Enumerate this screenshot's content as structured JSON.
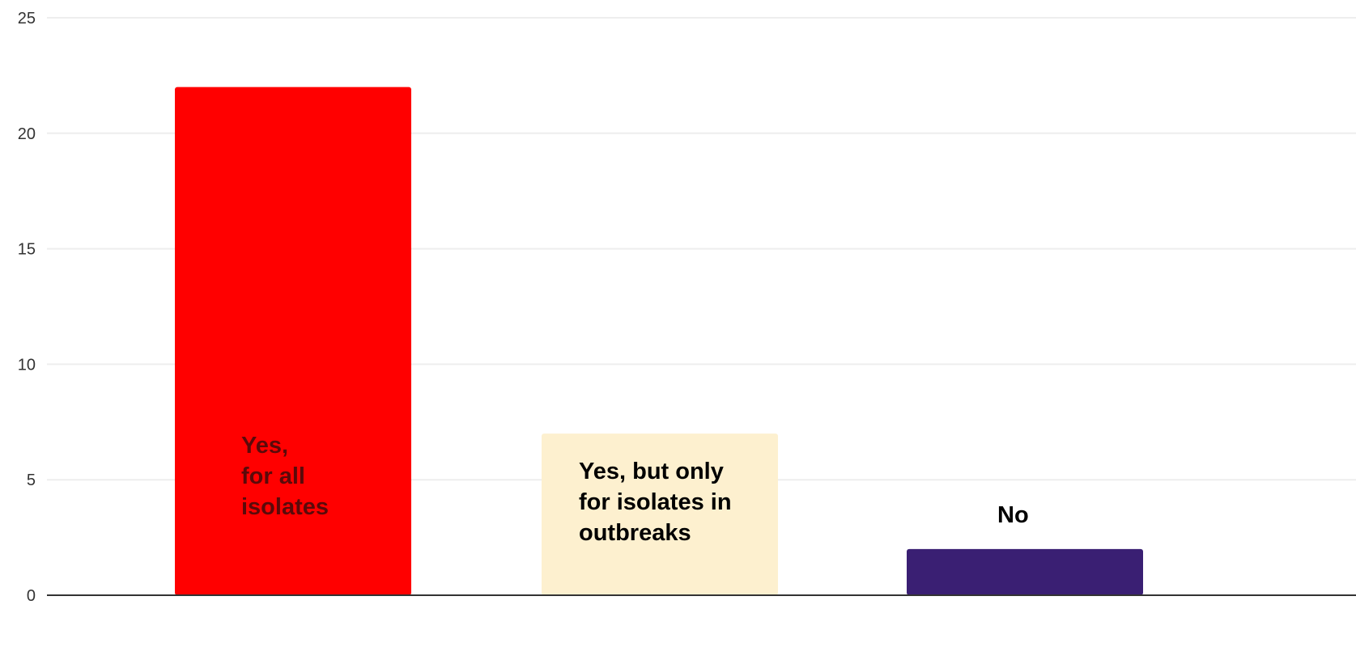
{
  "chart_data": {
    "type": "bar",
    "title": "",
    "xlabel": "",
    "ylabel": "",
    "ylim": [
      0,
      25
    ],
    "yticks": [
      0,
      5,
      10,
      15,
      20,
      25
    ],
    "grid": true,
    "legend": "none",
    "categories": [
      "Yes,\nfor all\nisolates",
      "Yes, but only\nfor isolates in\noutbreaks",
      "No"
    ],
    "values": [
      22,
      7,
      2
    ],
    "bar_colors": [
      "#ff0000",
      "#fdf0cf",
      "#3a1f73"
    ],
    "label_colors": [
      "#5a0a0a",
      "#000000",
      "#000000"
    ],
    "gridline_color": "#eeeeee",
    "axis_color": "#333333"
  }
}
